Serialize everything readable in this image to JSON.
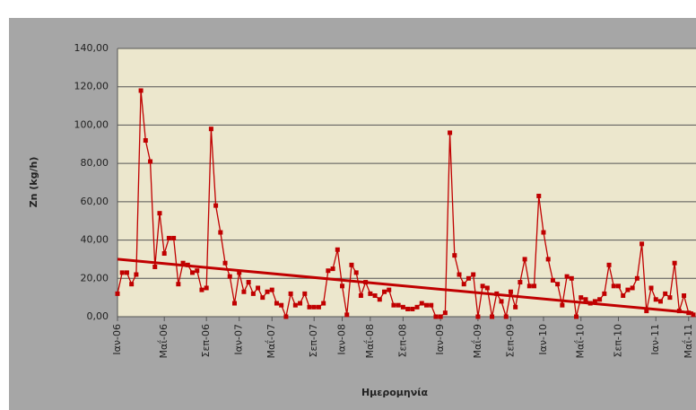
{
  "chart_data": {
    "type": "line",
    "y_label": "Zn (kg/h)",
    "x_label": "Ημερομηνία",
    "categories": [
      "Ιαν-06",
      null,
      null,
      null,
      null,
      null,
      null,
      null,
      null,
      null,
      "Μαΐ-06",
      null,
      null,
      null,
      null,
      null,
      null,
      null,
      null,
      "Σεπ-06",
      null,
      null,
      null,
      null,
      null,
      null,
      "Ιαν-07",
      null,
      null,
      null,
      null,
      null,
      null,
      "Μαΐ-07",
      null,
      null,
      null,
      null,
      null,
      null,
      null,
      null,
      "Σεπ-07",
      null,
      null,
      null,
      null,
      null,
      "Ιαν-08",
      null,
      null,
      null,
      null,
      null,
      "Μαΐ-08",
      null,
      null,
      null,
      null,
      null,
      null,
      "Σεπ-08",
      null,
      null,
      null,
      null,
      null,
      null,
      null,
      "Ιαν-09",
      null,
      null,
      null,
      null,
      null,
      null,
      null,
      "Μαΐ-09",
      null,
      null,
      null,
      null,
      null,
      null,
      "Σεπ-09",
      null,
      null,
      null,
      null,
      null,
      null,
      "Ιαν-10",
      null,
      null,
      null,
      null,
      null,
      null,
      null,
      "Μαΐ-10",
      null,
      null,
      null,
      null,
      null,
      null,
      null,
      "Σεπ-10",
      null,
      null,
      null,
      null,
      null,
      null,
      null,
      "Ιαν-11",
      null,
      null,
      null,
      null,
      null,
      null,
      "Μαΐ-11",
      null
    ],
    "series": [
      {
        "color": "#c00000",
        "values": [
          12,
          23,
          23,
          17,
          22,
          118,
          92,
          81,
          26,
          54,
          33,
          41,
          41,
          17,
          28,
          27,
          23,
          24,
          14,
          15,
          98,
          58,
          44,
          28,
          21,
          7,
          23,
          13,
          18,
          12,
          15,
          10,
          13,
          14,
          7,
          6,
          0,
          12,
          6,
          7,
          12,
          5,
          5,
          5,
          7,
          24,
          25,
          35,
          16,
          1,
          27,
          23,
          11,
          18,
          12,
          11,
          9,
          13,
          14,
          6,
          6,
          5,
          4,
          4,
          5,
          7,
          6,
          6,
          0,
          0,
          2,
          96,
          32,
          22,
          17,
          20,
          22,
          0,
          16,
          15,
          0,
          12,
          8,
          0,
          13,
          5,
          18,
          30,
          16,
          16,
          63,
          44,
          30,
          19,
          17,
          6,
          21,
          20,
          0,
          10,
          9,
          7,
          8,
          9,
          12,
          27,
          16,
          16,
          11,
          14,
          15,
          20,
          38,
          3,
          15,
          9,
          8,
          12,
          10,
          28,
          3,
          11,
          2,
          1
        ]
      }
    ],
    "trendline": [
      30,
      2
    ],
    "ylim": [
      0,
      140
    ],
    "yticks": [
      {
        "value": 0,
        "label": "0,00"
      },
      {
        "value": 20,
        "label": "20,00"
      },
      {
        "value": 40,
        "label": "40,00"
      },
      {
        "value": 60,
        "label": "60,00"
      },
      {
        "value": 80,
        "label": "80,00"
      },
      {
        "value": 100,
        "label": "100,00"
      },
      {
        "value": 120,
        "label": "120,00"
      },
      {
        "value": 140,
        "label": "140,00"
      }
    ],
    "grid": true
  }
}
